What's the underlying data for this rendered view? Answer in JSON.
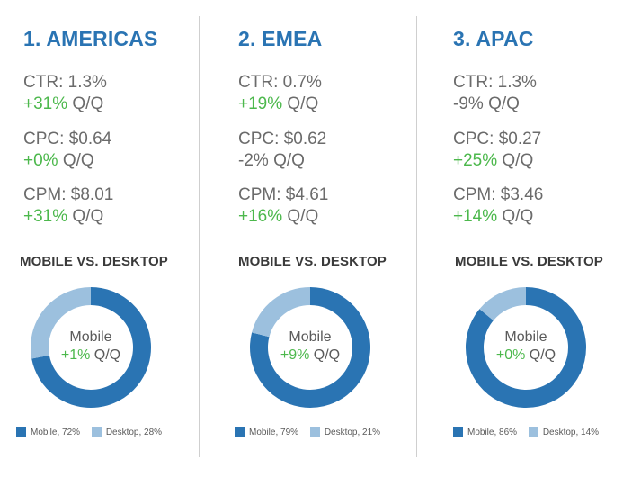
{
  "theme": {
    "accent": "#2a74b3",
    "mobile_color": "#2a74b3",
    "desktop_color": "#9cc0de",
    "positive_color": "#4cb84c"
  },
  "chart_data": [
    {
      "type": "pie",
      "title": "1. AMERICAS",
      "subtitle": "MOBILE VS. DESKTOP",
      "metrics": [
        {
          "label": "CTR",
          "value": "1.3%",
          "change": "+31%",
          "positive": true
        },
        {
          "label": "CPC",
          "value": "$0.64",
          "change": "+0%",
          "positive": true
        },
        {
          "label": "CPM",
          "value": "$8.01",
          "change": "+31%",
          "positive": true
        }
      ],
      "center_label": "Mobile",
      "center_change": "+1%",
      "change_suffix": "Q/Q",
      "series": [
        {
          "name": "Mobile",
          "value": 72,
          "legend": "Mobile, 72%"
        },
        {
          "name": "Desktop",
          "value": 28,
          "legend": "Desktop, 28%"
        }
      ]
    },
    {
      "type": "pie",
      "title": "2. EMEA",
      "subtitle": "MOBILE VS. DESKTOP",
      "metrics": [
        {
          "label": "CTR",
          "value": "0.7%",
          "change": "+19%",
          "positive": true
        },
        {
          "label": "CPC",
          "value": "$0.62",
          "change": "-2%",
          "positive": false
        },
        {
          "label": "CPM",
          "value": "$4.61",
          "change": "+16%",
          "positive": true
        }
      ],
      "center_label": "Mobile",
      "center_change": "+9%",
      "change_suffix": "Q/Q",
      "series": [
        {
          "name": "Mobile",
          "value": 79,
          "legend": "Mobile, 79%"
        },
        {
          "name": "Desktop",
          "value": 21,
          "legend": "Desktop, 21%"
        }
      ]
    },
    {
      "type": "pie",
      "title": "3. APAC",
      "subtitle": "MOBILE VS. DESKTOP",
      "metrics": [
        {
          "label": "CTR",
          "value": "1.3%",
          "change": "-9%",
          "positive": false
        },
        {
          "label": "CPC",
          "value": "$0.27",
          "change": "+25%",
          "positive": true
        },
        {
          "label": "CPM",
          "value": "$3.46",
          "change": "+14%",
          "positive": true
        }
      ],
      "center_label": "Mobile",
      "center_change": "+0%",
      "change_suffix": "Q/Q",
      "series": [
        {
          "name": "Mobile",
          "value": 86,
          "legend": "Mobile, 86%"
        },
        {
          "name": "Desktop",
          "value": 14,
          "legend": "Desktop, 14%"
        }
      ]
    }
  ]
}
